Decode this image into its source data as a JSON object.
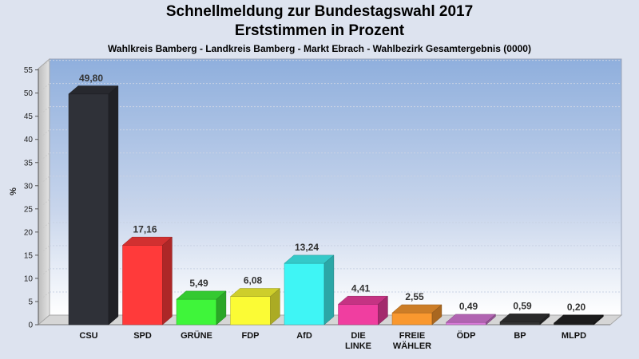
{
  "header": {
    "title_line1": "Schnellmeldung zur Bundestagswahl 2017",
    "title_line2": "Erststimmen in Prozent",
    "subtitle": "Wahlkreis Bamberg - Landkreis Bamberg - Markt Ebrach - Wahlbezirk Gesamtergebnis (0000)"
  },
  "chart_data": {
    "type": "bar",
    "title": "Schnellmeldung zur Bundestagswahl 2017 – Erststimmen in Prozent",
    "subtitle": "Wahlkreis Bamberg - Landkreis Bamberg - Markt Ebrach - Wahlbezirk Gesamtergebnis (0000)",
    "xlabel": "",
    "ylabel": "%",
    "ylim": [
      0,
      57
    ],
    "yticks": [
      0,
      5,
      10,
      15,
      20,
      25,
      30,
      35,
      40,
      45,
      50,
      55
    ],
    "grid": true,
    "legend": "none",
    "categories": [
      {
        "label": [
          "CSU"
        ],
        "value": 49.8,
        "value_label": "49,80",
        "color": "#2f3138"
      },
      {
        "label": [
          "SPD"
        ],
        "value": 17.16,
        "value_label": "17,16",
        "color": "#ff3a3a"
      },
      {
        "label": [
          "GRÜNE"
        ],
        "value": 5.49,
        "value_label": "5,49",
        "color": "#3ff53a"
      },
      {
        "label": [
          "FDP"
        ],
        "value": 6.08,
        "value_label": "6,08",
        "color": "#fbfb35"
      },
      {
        "label": [
          "AfD"
        ],
        "value": 13.24,
        "value_label": "13,24",
        "color": "#3ff5f5"
      },
      {
        "label": [
          "DIE",
          "LINKE"
        ],
        "value": 4.41,
        "value_label": "4,41",
        "color": "#f03ea0"
      },
      {
        "label": [
          "FREIE",
          "WÄHLER"
        ],
        "value": 2.55,
        "value_label": "2,55",
        "color": "#f9982f"
      },
      {
        "label": [
          "ÖDP"
        ],
        "value": 0.49,
        "value_label": "0,49",
        "color": "#d87ad8"
      },
      {
        "label": [
          "BP"
        ],
        "value": 0.59,
        "value_label": "0,59",
        "color": "#333333"
      },
      {
        "label": [
          "MLPD"
        ],
        "value": 0.2,
        "value_label": "0,20",
        "color": "#222222"
      }
    ]
  }
}
